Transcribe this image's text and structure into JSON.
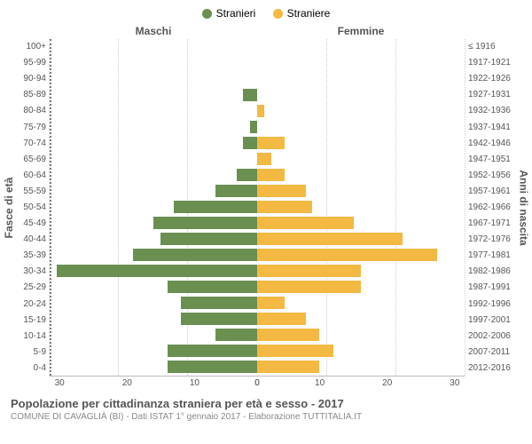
{
  "legend": {
    "male": {
      "label": "Stranieri",
      "color": "#6a8f51"
    },
    "female": {
      "label": "Straniere",
      "color": "#f4b942"
    }
  },
  "headers": {
    "male": "Maschi",
    "female": "Femmine"
  },
  "y_axis_left": {
    "title": "Fasce di età"
  },
  "y_axis_right": {
    "title": "Anni di nascita"
  },
  "x_axis": {
    "max": 30,
    "ticks": [
      0,
      10,
      20,
      30
    ],
    "grid_color": "#cccccc"
  },
  "chart": {
    "type": "population-pyramid",
    "male_color": "#6a8f51",
    "female_color": "#f4b942",
    "background": "#ffffff",
    "bar_height_pct": 78,
    "rows": [
      {
        "age": "100+",
        "year": "≤ 1916",
        "m": 0,
        "f": 0
      },
      {
        "age": "95-99",
        "year": "1917-1921",
        "m": 0,
        "f": 0
      },
      {
        "age": "90-94",
        "year": "1922-1926",
        "m": 0,
        "f": 0
      },
      {
        "age": "85-89",
        "year": "1927-1931",
        "m": 2,
        "f": 0
      },
      {
        "age": "80-84",
        "year": "1932-1936",
        "m": 0,
        "f": 1
      },
      {
        "age": "75-79",
        "year": "1937-1941",
        "m": 1,
        "f": 0
      },
      {
        "age": "70-74",
        "year": "1942-1946",
        "m": 2,
        "f": 4
      },
      {
        "age": "65-69",
        "year": "1947-1951",
        "m": 0,
        "f": 2
      },
      {
        "age": "60-64",
        "year": "1952-1956",
        "m": 3,
        "f": 4
      },
      {
        "age": "55-59",
        "year": "1957-1961",
        "m": 6,
        "f": 7
      },
      {
        "age": "50-54",
        "year": "1962-1966",
        "m": 12,
        "f": 8
      },
      {
        "age": "45-49",
        "year": "1967-1971",
        "m": 15,
        "f": 14
      },
      {
        "age": "40-44",
        "year": "1972-1976",
        "m": 14,
        "f": 21
      },
      {
        "age": "35-39",
        "year": "1977-1981",
        "m": 18,
        "f": 26
      },
      {
        "age": "30-34",
        "year": "1982-1986",
        "m": 29,
        "f": 15
      },
      {
        "age": "25-29",
        "year": "1987-1991",
        "m": 13,
        "f": 15
      },
      {
        "age": "20-24",
        "year": "1992-1996",
        "m": 11,
        "f": 4
      },
      {
        "age": "15-19",
        "year": "1997-2001",
        "m": 11,
        "f": 7
      },
      {
        "age": "10-14",
        "year": "2002-2006",
        "m": 6,
        "f": 9
      },
      {
        "age": "5-9",
        "year": "2007-2011",
        "m": 13,
        "f": 11
      },
      {
        "age": "0-4",
        "year": "2012-2016",
        "m": 13,
        "f": 9
      }
    ]
  },
  "footer": {
    "title": "Popolazione per cittadinanza straniera per età e sesso - 2017",
    "sub": "COMUNE DI CAVAGLIÀ (BI) - Dati ISTAT 1° gennaio 2017 - Elaborazione TUTTITALIA.IT"
  }
}
